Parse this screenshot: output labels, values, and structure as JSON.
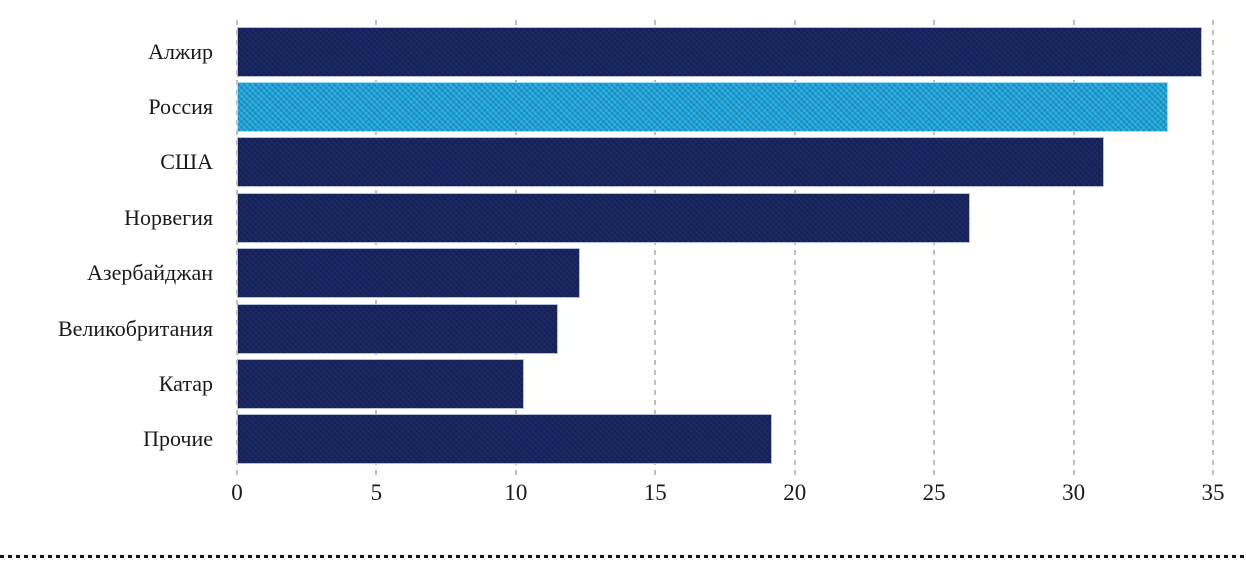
{
  "chart_data": {
    "type": "bar",
    "orientation": "horizontal",
    "title": "",
    "xlabel": "",
    "ylabel": "",
    "categories": [
      "Алжир",
      "Россия",
      "США",
      "Норвегия",
      "Азербайджан",
      "Великобритания",
      "Катар",
      "Прочие"
    ],
    "values": [
      34.6,
      33.4,
      31.1,
      26.3,
      12.3,
      11.5,
      10.3,
      19.2
    ],
    "highlighted_category": "Россия",
    "xlim": [
      0,
      35
    ],
    "x_ticks": [
      0,
      5,
      10,
      15,
      20,
      25,
      30,
      35
    ],
    "grid": "vertical-dashed",
    "legend": "none",
    "colors": {
      "bar": "#1c2a6b",
      "highlight": "#2ab5ef",
      "gridline": "#bfbfbf",
      "tick_text": "#1a1a1a",
      "label_text": "#1a1a1a",
      "separator": "#151515",
      "background": "#ffffff"
    }
  }
}
